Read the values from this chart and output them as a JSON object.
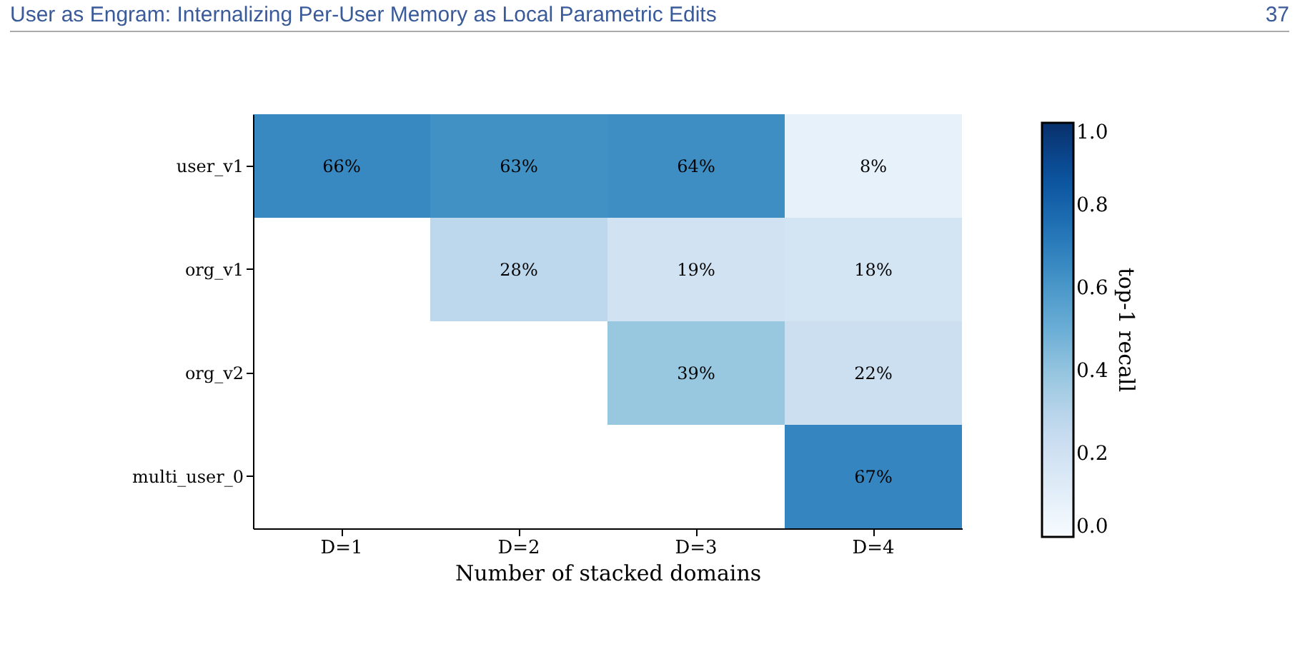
{
  "chart_data": {
    "type": "heatmap",
    "xlabel": "Number of stacked domains",
    "clabel": "top-1 recall",
    "categories": [
      "D=1",
      "D=2",
      "D=3",
      "D=4"
    ],
    "y_categories": [
      "user_v1",
      "org_v1",
      "org_v2",
      "multi_user_0"
    ],
    "cells": [
      [
        0.66,
        0.63,
        0.64,
        0.08
      ],
      [
        null,
        0.28,
        0.19,
        0.18
      ],
      [
        null,
        null,
        0.39,
        0.22
      ],
      [
        null,
        null,
        null,
        0.67
      ]
    ],
    "cell_labels": [
      [
        "66%",
        "63%",
        "64%",
        "8%"
      ],
      [
        null,
        "28%",
        "19%",
        "18%"
      ],
      [
        null,
        null,
        "39%",
        "22%"
      ],
      [
        null,
        null,
        null,
        "67%"
      ]
    ],
    "clim": [
      0.0,
      1.0
    ],
    "cticks": [
      {
        "value": 0.0,
        "label": "0.0"
      },
      {
        "value": 0.2,
        "label": "0.2"
      },
      {
        "value": 0.4,
        "label": "0.4"
      },
      {
        "value": 0.6,
        "label": "0.6"
      },
      {
        "value": 0.8,
        "label": "0.8"
      },
      {
        "value": 1.0,
        "label": "1.0"
      }
    ],
    "annotations": [
      "User as Engram: Internalizing Per-User Memory as Local Parametric Edits",
      "37"
    ]
  }
}
